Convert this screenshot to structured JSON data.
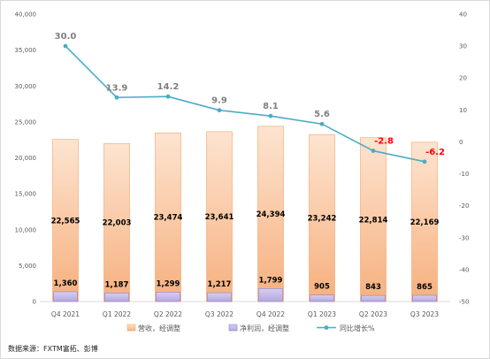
{
  "chart_data": {
    "type": "bar",
    "categories": [
      "Q4 2021",
      "Q1 2022",
      "Q2 2022",
      "Q3 2022",
      "Q4 2022",
      "Q1 2023",
      "Q2 2023",
      "Q3 2023"
    ],
    "series": [
      {
        "name": "营收，经调整",
        "kind": "bar",
        "axis": "left",
        "values": [
          22565,
          22003,
          23474,
          23641,
          24394,
          23242,
          22814,
          22169
        ],
        "labels": [
          "22,565",
          "22,003",
          "23,474",
          "23,641",
          "24,394",
          "23,242",
          "22,814",
          "22,169"
        ],
        "color": "#f6b07e"
      },
      {
        "name": "净利润，经调整",
        "kind": "bar",
        "axis": "left",
        "values": [
          1360,
          1187,
          1299,
          1217,
          1799,
          905,
          843,
          865
        ],
        "labels": [
          "1,360",
          "1,187",
          "1,299",
          "1,217",
          "1,799",
          "905",
          "843",
          "865"
        ],
        "color": "#b4a7e0"
      },
      {
        "name": "同比增长%",
        "kind": "line",
        "axis": "right",
        "values": [
          30.0,
          13.9,
          14.2,
          9.9,
          8.1,
          5.6,
          -2.8,
          -6.2
        ],
        "labels": [
          "30.0",
          "13.9",
          "14.2",
          "9.9",
          "8.1",
          "5.6",
          "-2.8",
          "-6.2"
        ],
        "color": "#4bacc6"
      }
    ],
    "y_left": {
      "range": [
        0,
        40000
      ],
      "ticks": [
        "0",
        "5,000",
        "10,000",
        "15,000",
        "20,000",
        "25,000",
        "30,000",
        "35,000",
        "40,000"
      ]
    },
    "y_right": {
      "range": [
        -50,
        40
      ],
      "ticks": [
        "-50",
        "-40",
        "-30",
        "-20",
        "-10",
        "0",
        "10",
        "20",
        "30",
        "40"
      ]
    },
    "growth_label_colors": {
      "positive": "#808080",
      "negative": "#ff0000"
    },
    "legend_position": "bottom",
    "grid": false
  },
  "source_note": "数据来源：FXTM富拓、彭博"
}
